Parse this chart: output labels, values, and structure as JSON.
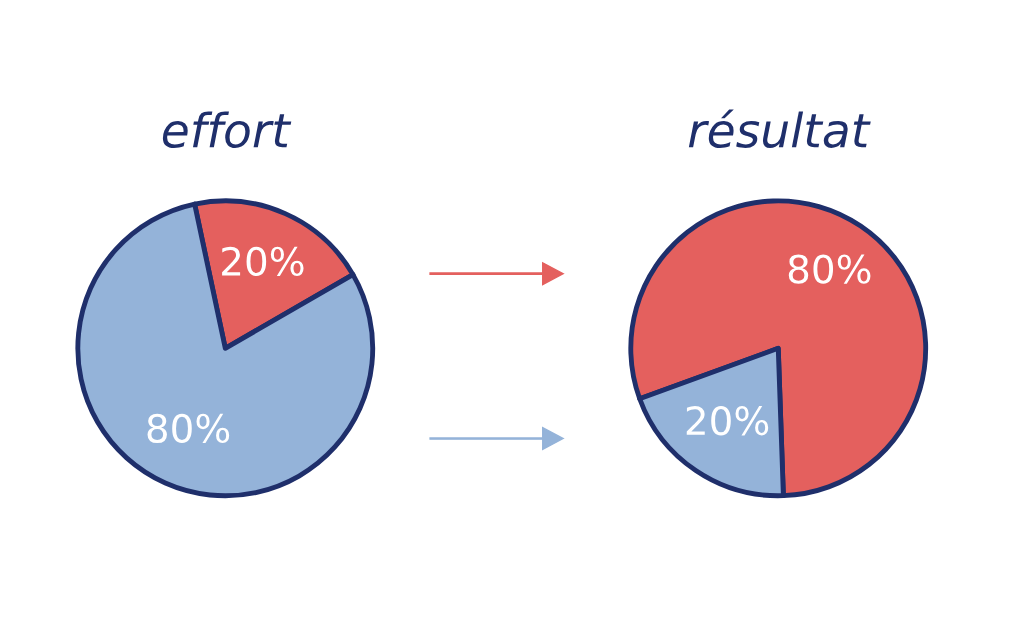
{
  "chart_data": [
    {
      "type": "pie",
      "title": "effort",
      "categories": [
        null,
        null
      ],
      "values": [
        20,
        80
      ],
      "colors": [
        "#e4605e",
        "#94b3d9"
      ],
      "value_labels": [
        "20%",
        "80%"
      ]
    },
    {
      "type": "pie",
      "title": "résultat",
      "categories": [
        null,
        null
      ],
      "values": [
        80,
        20
      ],
      "colors": [
        "#e4605e",
        "#94b3d9"
      ],
      "value_labels": [
        "80%",
        "20%"
      ]
    }
  ]
}
